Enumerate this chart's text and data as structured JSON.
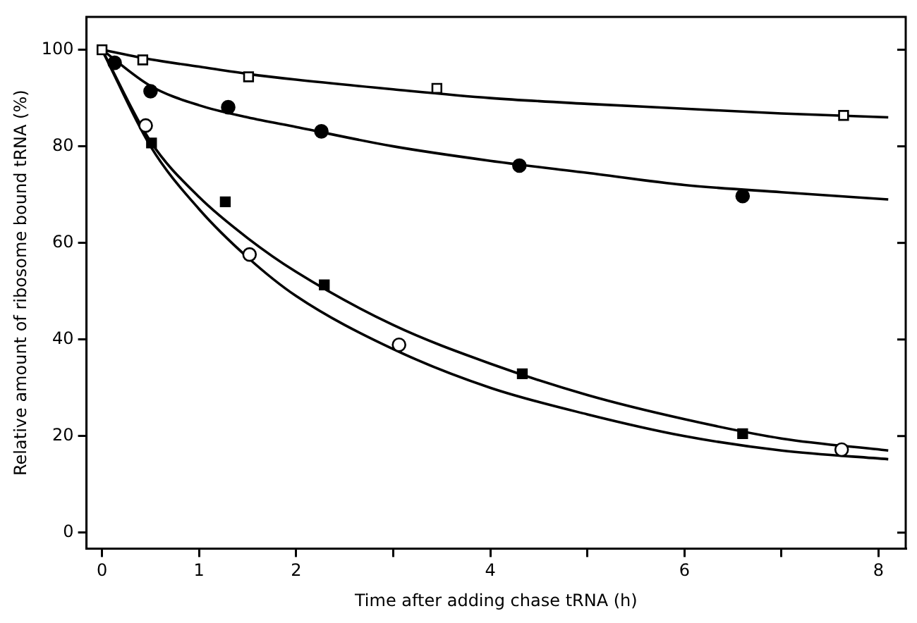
{
  "chart_data": {
    "type": "scatter",
    "xlabel": "Time after adding chase tRNA (h)",
    "ylabel": "Relative amount of ribosome bound tRNA (%)",
    "xlim": [
      -0.16,
      8.28
    ],
    "ylim": [
      -3.3,
      106.8
    ],
    "xticks": [
      0,
      1,
      2,
      {
        "value": 3,
        "label": null
      },
      4,
      {
        "value": 5,
        "label": null
      },
      6,
      {
        "value": 7,
        "label": null
      },
      8
    ],
    "yticks": [
      0,
      20,
      40,
      60,
      80,
      100
    ],
    "grid": false,
    "legend": false,
    "series": [
      {
        "type": "line",
        "color": "#000000",
        "marker": "none",
        "x": [
          0,
          0.5,
          1,
          1.5,
          2,
          3,
          4,
          5,
          6,
          7,
          8.1
        ],
        "values": [
          100,
          98,
          96.5,
          95,
          93.8,
          91.8,
          90,
          88.8,
          87.8,
          86.8,
          86
        ]
      },
      {
        "type": "line",
        "color": "#000000",
        "marker": "none",
        "x": [
          0,
          0.5,
          1,
          1.5,
          2,
          3,
          4,
          5,
          6,
          7,
          8.1
        ],
        "values": [
          100,
          92.5,
          88.5,
          86,
          84,
          80,
          77,
          74.5,
          72,
          70.5,
          69
        ]
      },
      {
        "type": "line",
        "color": "#000000",
        "marker": "none",
        "x": [
          0,
          0.5,
          1,
          1.5,
          2,
          3,
          4,
          5,
          6,
          7,
          8.1
        ],
        "values": [
          100,
          81,
          69.5,
          61,
          54,
          43,
          35,
          28.5,
          23.5,
          19.5,
          17
        ]
      },
      {
        "type": "line",
        "color": "#000000",
        "marker": "none",
        "x": [
          0,
          0.5,
          1,
          1.5,
          2,
          3,
          4,
          5,
          6,
          7,
          8.1
        ],
        "values": [
          100,
          80,
          67,
          57,
          49,
          38,
          30,
          24.5,
          20,
          17,
          15.2
        ]
      },
      {
        "type": "scatter",
        "color": "#ffffff",
        "marker": "square",
        "x": [
          0,
          0.42,
          1.51,
          3.45,
          7.64
        ],
        "values": [
          100,
          97.9,
          94.4,
          92,
          86.4
        ]
      },
      {
        "type": "scatter",
        "color": "#000000",
        "marker": "circle",
        "x": [
          0.13,
          0.5,
          1.3,
          2.26,
          4.3,
          6.6
        ],
        "values": [
          97.3,
          91.4,
          88.1,
          83.1,
          76,
          69.7
        ]
      },
      {
        "type": "scatter",
        "color": "#000000",
        "marker": "square",
        "x": [
          0.51,
          1.27,
          2.29,
          4.33,
          6.6
        ],
        "values": [
          80.7,
          68.5,
          51.3,
          32.9,
          20.5
        ]
      },
      {
        "type": "scatter",
        "color": "#ffffff",
        "marker": "circle",
        "x": [
          0.45,
          1.52,
          3.06,
          7.62
        ],
        "values": [
          84.3,
          57.6,
          38.9,
          17.2
        ]
      }
    ]
  }
}
